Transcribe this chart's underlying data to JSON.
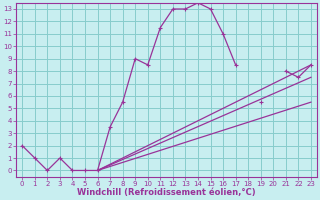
{
  "bg_color": "#c8eef0",
  "grid_color": "#88cccc",
  "line_color": "#993399",
  "xlim": [
    -0.5,
    23.5
  ],
  "ylim": [
    -0.5,
    13.5
  ],
  "xticks": [
    0,
    1,
    2,
    3,
    4,
    5,
    6,
    7,
    8,
    9,
    10,
    11,
    12,
    13,
    14,
    15,
    16,
    17,
    18,
    19,
    20,
    21,
    22,
    23
  ],
  "yticks": [
    0,
    1,
    2,
    3,
    4,
    5,
    6,
    7,
    8,
    9,
    10,
    11,
    12,
    13
  ],
  "xlabel": "Windchill (Refroidissement éolien,°C)",
  "line1_x": [
    0,
    1,
    2,
    3,
    4,
    5,
    6,
    7,
    8,
    9,
    10,
    11,
    12,
    13,
    14,
    15,
    16,
    17,
    18,
    19,
    20,
    21,
    22,
    23
  ],
  "line1_y": [
    2,
    1,
    0,
    1,
    0,
    0,
    0,
    3.5,
    5.5,
    9,
    8.5,
    11.5,
    13,
    13,
    13.5,
    13,
    11,
    8.5,
    null,
    5.5,
    null,
    8,
    7.5,
    8.5
  ],
  "line3_x": [
    6,
    23
  ],
  "line3_y": [
    0,
    8.5
  ],
  "line4_x": [
    6,
    23
  ],
  "line4_y": [
    0,
    5.5
  ],
  "line5_x": [
    6,
    23
  ],
  "line5_y": [
    0,
    7.5
  ],
  "tick_fontsize": 5.0,
  "label_fontsize": 6.0
}
